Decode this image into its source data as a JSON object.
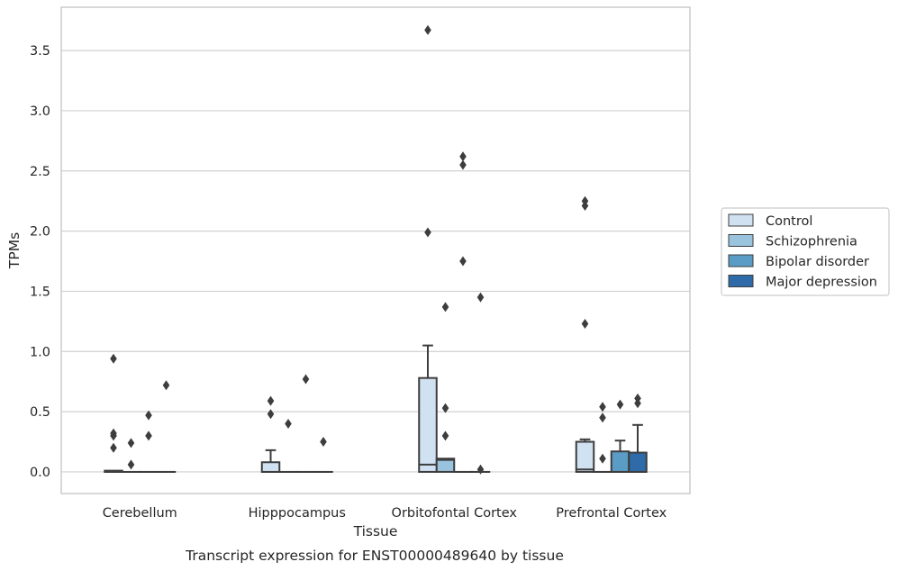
{
  "chart_data": {
    "type": "box",
    "xlabel": "Tissue",
    "ylabel": "TPMs",
    "caption": "Transcript expression for ENST00000489640 by tissue",
    "ylim": [
      -0.18,
      3.86
    ],
    "yticks": [
      0.0,
      0.5,
      1.0,
      1.5,
      2.0,
      2.5,
      3.0,
      3.5
    ],
    "ytick_labels": [
      "0.0",
      "0.5",
      "1.0",
      "1.5",
      "2.0",
      "2.5",
      "3.0",
      "3.5"
    ],
    "grid": "horizontal",
    "legend_position": "right",
    "categories": [
      "Cerebellum",
      "Hipppocampus",
      "Orbitofontal Cortex",
      "Prefrontal Cortex"
    ],
    "series": [
      {
        "name": "Control",
        "color": "#d0e1f2",
        "boxes": [
          {
            "q1": 0.0,
            "median": 0.0,
            "q3": 0.01,
            "whislo": 0.0,
            "whishi": 0.01,
            "fliers": [
              0.94,
              0.32,
              0.3,
              0.2
            ]
          },
          {
            "q1": 0.0,
            "median": 0.0,
            "q3": 0.08,
            "whislo": 0.0,
            "whishi": 0.18,
            "fliers": [
              0.59,
              0.48
            ]
          },
          {
            "q1": 0.0,
            "median": 0.06,
            "q3": 0.78,
            "whislo": 0.0,
            "whishi": 1.05,
            "fliers": [
              3.67,
              1.99
            ]
          },
          {
            "q1": 0.0,
            "median": 0.02,
            "q3": 0.25,
            "whislo": 0.0,
            "whishi": 0.27,
            "fliers": [
              2.25,
              2.21,
              1.23
            ]
          }
        ]
      },
      {
        "name": "Schizophrenia",
        "color": "#9ac3de",
        "boxes": [
          {
            "q1": 0.0,
            "median": 0.0,
            "q3": 0.0,
            "whislo": 0.0,
            "whishi": 0.0,
            "fliers": [
              0.24,
              0.06
            ]
          },
          {
            "q1": 0.0,
            "median": 0.0,
            "q3": 0.0,
            "whislo": 0.0,
            "whishi": 0.0,
            "fliers": [
              0.4
            ]
          },
          {
            "q1": 0.0,
            "median": 0.1,
            "q3": 0.11,
            "whislo": 0.0,
            "whishi": 0.11,
            "fliers": [
              1.37,
              0.53,
              0.3
            ]
          },
          {
            "q1": 0.0,
            "median": 0.0,
            "q3": 0.0,
            "whislo": 0.0,
            "whishi": 0.0,
            "fliers": [
              0.54,
              0.45,
              0.11
            ]
          }
        ]
      },
      {
        "name": "Bipolar disorder",
        "color": "#5b9cc7",
        "boxes": [
          {
            "q1": 0.0,
            "median": 0.0,
            "q3": 0.0,
            "whislo": 0.0,
            "whishi": 0.0,
            "fliers": [
              0.47,
              0.3
            ]
          },
          {
            "q1": 0.0,
            "median": 0.0,
            "q3": 0.0,
            "whislo": 0.0,
            "whishi": 0.0,
            "fliers": [
              0.77
            ]
          },
          {
            "q1": 0.0,
            "median": 0.0,
            "q3": 0.0,
            "whislo": 0.0,
            "whishi": 0.0,
            "fliers": [
              2.62,
              2.55,
              1.75
            ]
          },
          {
            "q1": 0.0,
            "median": 0.0,
            "q3": 0.17,
            "whislo": 0.0,
            "whishi": 0.26,
            "fliers": [
              0.56
            ]
          }
        ]
      },
      {
        "name": "Major depression",
        "color": "#2e6ba8",
        "boxes": [
          {
            "q1": 0.0,
            "median": 0.0,
            "q3": 0.0,
            "whislo": 0.0,
            "whishi": 0.0,
            "fliers": [
              0.72
            ]
          },
          {
            "q1": 0.0,
            "median": 0.0,
            "q3": 0.0,
            "whislo": 0.0,
            "whishi": 0.0,
            "fliers": [
              0.25
            ]
          },
          {
            "q1": 0.0,
            "median": 0.0,
            "q3": 0.0,
            "whislo": 0.0,
            "whishi": 0.0,
            "fliers": [
              1.45,
              0.02
            ]
          },
          {
            "q1": 0.0,
            "median": 0.0,
            "q3": 0.16,
            "whislo": 0.0,
            "whishi": 0.39,
            "fliers": [
              0.61,
              0.57
            ]
          }
        ]
      }
    ]
  }
}
